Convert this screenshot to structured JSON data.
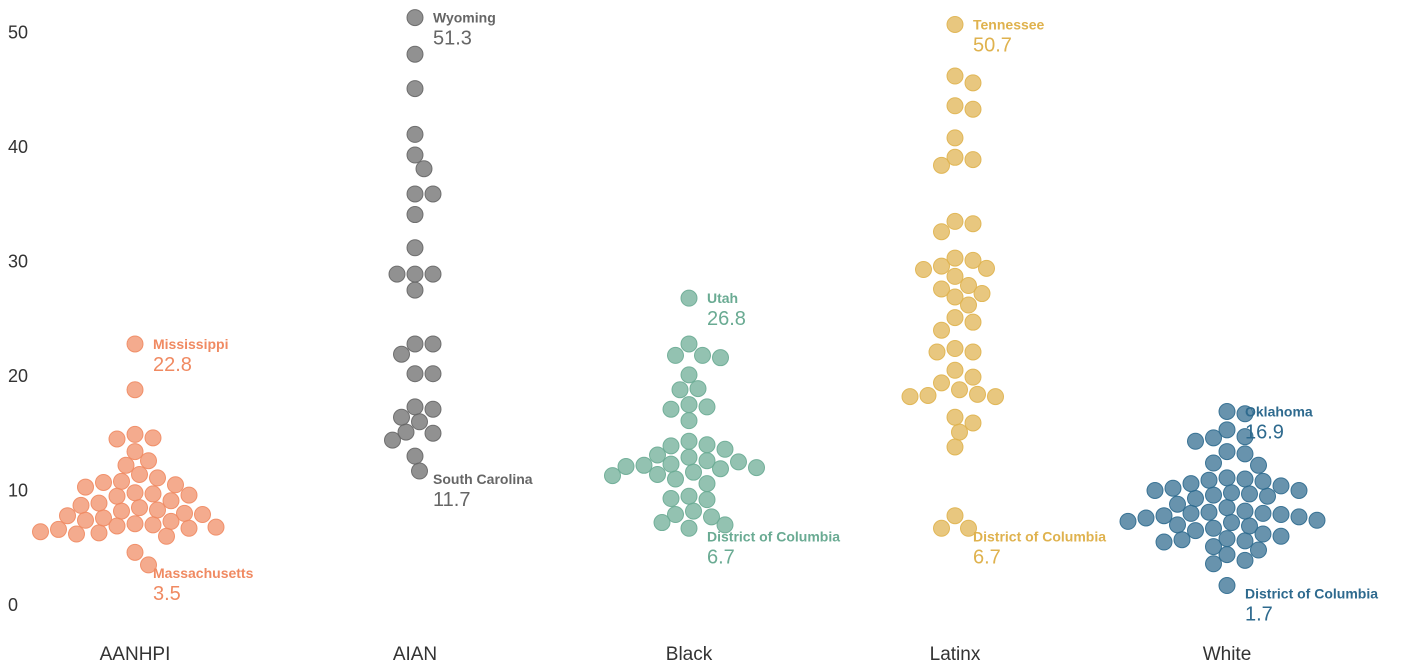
{
  "chart_data": {
    "type": "scatter",
    "ylim": [
      0,
      52
    ],
    "yticks": [
      0,
      10,
      20,
      30,
      40,
      50
    ],
    "grid": false,
    "categories": [
      "AANHPI",
      "AIAN",
      "Black",
      "Latinx",
      "White"
    ],
    "series": [
      {
        "name": "AANHPI",
        "color": "#f08a62",
        "values": [
          22.8,
          18.8,
          14.9,
          14.6,
          14.5,
          13.4,
          12.6,
          12.2,
          11.4,
          11.1,
          10.8,
          10.7,
          10.5,
          10.3,
          9.8,
          9.7,
          9.6,
          9.5,
          9.1,
          8.9,
          8.7,
          8.5,
          8.3,
          8.2,
          8.0,
          7.9,
          7.8,
          7.6,
          7.4,
          7.3,
          7.1,
          7.0,
          6.9,
          6.8,
          6.7,
          6.6,
          6.4,
          6.3,
          6.2,
          6.0,
          4.6,
          3.5
        ],
        "annotations": [
          {
            "name": "Mississippi",
            "value": "22.8"
          },
          {
            "name": "Massachusetts",
            "value": "3.5"
          }
        ]
      },
      {
        "name": "AIAN",
        "color": "#666666",
        "values": [
          51.3,
          48.1,
          45.1,
          41.1,
          39.3,
          38.1,
          35.9,
          35.9,
          34.1,
          31.2,
          28.9,
          28.9,
          28.9,
          27.5,
          22.8,
          22.8,
          21.9,
          20.2,
          20.2,
          17.3,
          17.1,
          16.4,
          16.0,
          15.1,
          15.0,
          14.4,
          13.0,
          11.7
        ],
        "annotations": [
          {
            "name": "Wyoming",
            "value": "51.3"
          },
          {
            "name": "South Carolina",
            "value": "11.7"
          }
        ]
      },
      {
        "name": "Black",
        "color": "#6aab93",
        "values": [
          26.8,
          22.8,
          21.8,
          21.8,
          21.6,
          20.1,
          18.9,
          18.8,
          17.5,
          17.3,
          17.1,
          16.1,
          14.3,
          14.0,
          13.9,
          13.6,
          13.1,
          12.9,
          12.6,
          12.5,
          12.3,
          12.2,
          12.1,
          12.0,
          11.9,
          11.6,
          11.4,
          11.3,
          11.0,
          10.6,
          9.5,
          9.3,
          9.2,
          8.2,
          7.9,
          7.7,
          7.2,
          7.0,
          6.7
        ],
        "annotations": [
          {
            "name": "Utah",
            "value": "26.8"
          },
          {
            "name": "District of Columbia",
            "value": "6.7"
          }
        ]
      },
      {
        "name": "Latinx",
        "color": "#dfb24e",
        "values": [
          50.7,
          46.2,
          45.6,
          43.6,
          43.3,
          40.8,
          39.1,
          38.9,
          38.4,
          33.5,
          33.3,
          32.6,
          30.3,
          30.1,
          29.6,
          29.4,
          29.3,
          28.7,
          27.9,
          27.6,
          27.2,
          26.9,
          26.2,
          25.1,
          24.7,
          24.0,
          22.4,
          22.1,
          22.1,
          20.5,
          19.9,
          19.4,
          18.8,
          18.4,
          18.3,
          18.2,
          18.2,
          16.4,
          15.9,
          15.1,
          13.8,
          7.8,
          6.7,
          6.7
        ],
        "annotations": [
          {
            "name": "Tennessee",
            "value": "50.7"
          },
          {
            "name": "District of Columbia",
            "value": "6.7"
          }
        ]
      },
      {
        "name": "White",
        "color": "#2e6a8e",
        "values": [
          16.9,
          16.7,
          15.3,
          14.7,
          14.6,
          14.3,
          13.4,
          13.2,
          12.4,
          12.2,
          11.1,
          11.0,
          10.9,
          10.8,
          10.6,
          10.4,
          10.2,
          10.0,
          10.0,
          9.8,
          9.7,
          9.6,
          9.5,
          9.3,
          8.8,
          8.5,
          8.2,
          8.1,
          8.0,
          8.0,
          7.9,
          7.8,
          7.7,
          7.6,
          7.4,
          7.3,
          7.2,
          7.0,
          6.9,
          6.7,
          6.5,
          6.2,
          6.0,
          5.8,
          5.7,
          5.6,
          5.5,
          5.1,
          4.8,
          4.4,
          3.9,
          3.6,
          1.7
        ],
        "annotations": [
          {
            "name": "Oklahoma",
            "value": "16.9"
          },
          {
            "name": "District of Columbia",
            "value": "1.7"
          }
        ]
      }
    ]
  }
}
